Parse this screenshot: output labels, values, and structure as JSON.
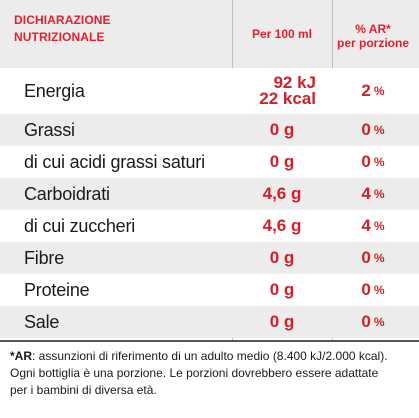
{
  "header": {
    "title_line1": "DICHIARAZIONE",
    "title_line2": "NUTRIZIONALE",
    "per100": "Per 100 ml",
    "ar_line1": "% AR*",
    "ar_line2": "per porzione"
  },
  "rows": [
    {
      "name": "Energia",
      "value_line1": "92 kJ",
      "value_line2": "22 kcal",
      "pct": "2",
      "unit": "%"
    },
    {
      "name": "Grassi",
      "value": "0 g",
      "pct": "0",
      "unit": "%"
    },
    {
      "name": "di cui acidi grassi saturi",
      "value": "0 g",
      "pct": "0",
      "unit": "%"
    },
    {
      "name": "Carboidrati",
      "value": "4,6 g",
      "pct": "4",
      "unit": "%"
    },
    {
      "name": "di cui zuccheri",
      "value": "4,6 g",
      "pct": "4",
      "unit": "%"
    },
    {
      "name": "Fibre",
      "value": "0 g",
      "pct": "0",
      "unit": "%"
    },
    {
      "name": "Proteine",
      "value": "0 g",
      "pct": "0",
      "unit": "%"
    },
    {
      "name": "Sale",
      "value": "0 g",
      "pct": "0",
      "unit": "%"
    }
  ],
  "footnote": {
    "lead": "*AR",
    "text": ": assunzioni di riferimento di un adulto medio (8.400 kJ/2.000 kcal).",
    "line2": "Ogni bottiglia è una porzione. Le porzioni dovrebbero essere adattate",
    "line3": "per i bambini di diversa età."
  },
  "colors": {
    "accent": "#d21f2a",
    "header_bg": "#ececec",
    "row_shade": "#ececec"
  }
}
